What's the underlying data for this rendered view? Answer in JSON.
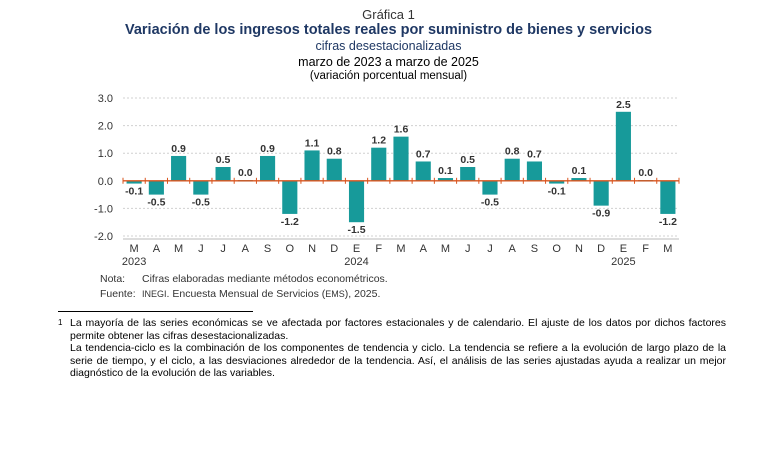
{
  "header": {
    "figure_label": "Gráfica 1",
    "title": "Variación de los ingresos totales reales por suministro de bienes y servicios",
    "subtitle": "cifras desestacionalizadas",
    "period": "marzo de 2023 a marzo de 2025",
    "units": "(variación porcentual mensual)"
  },
  "chart_data": {
    "type": "bar",
    "title": "Variación de los ingresos totales reales por suministro de bienes y servicios",
    "categories": [
      "M",
      "A",
      "M",
      "J",
      "J",
      "A",
      "S",
      "O",
      "N",
      "D",
      "E",
      "F",
      "M",
      "A",
      "M",
      "J",
      "J",
      "A",
      "S",
      "O",
      "N",
      "D",
      "E",
      "F",
      "M"
    ],
    "years": [
      {
        "label": "2023",
        "category_index": 0
      },
      {
        "label": "2024",
        "category_index": 10
      },
      {
        "label": "2025",
        "category_index": 22
      }
    ],
    "values": [
      -0.1,
      -0.5,
      0.9,
      -0.5,
      0.5,
      0.0,
      0.9,
      -1.2,
      1.1,
      0.8,
      -1.5,
      1.2,
      1.6,
      0.7,
      0.1,
      0.5,
      -0.5,
      0.8,
      0.7,
      -0.1,
      0.1,
      -0.9,
      2.5,
      0.0,
      -1.2
    ],
    "value_labels": [
      "-0.1",
      "-0.5",
      "0.9",
      "-0.5",
      "0.5",
      "0.0",
      "0.9",
      "-1.2",
      "1.1",
      "0.8",
      "-1.5",
      "1.2",
      "1.6",
      "0.7",
      "0.1",
      "0.5",
      "-0.5",
      "0.8",
      "0.7",
      "-0.1",
      "0.1",
      "-0.9",
      "2.5",
      "0.0",
      "-1.2"
    ],
    "yticks": [
      "3.0",
      "2.0",
      "1.0",
      "0.0",
      "-1.0",
      "-2.0"
    ],
    "ylim": [
      -2,
      3
    ],
    "bar_color": "#179a9a",
    "zero_line_color": "#d9541e",
    "grid": true
  },
  "notes": {
    "note_label": "Nota:",
    "note_text": "Cifras elaboradas mediante métodos econométricos.",
    "source_label": "Fuente:",
    "source_org": "INEGI",
    "source_mid": ". Encuesta Mensual de Servicios (",
    "source_abbr": "EMS",
    "source_end": "), 2025."
  },
  "footnote": {
    "mark": "1",
    "para1": "La mayoría de las series económicas se ve afectada por factores estacionales y de calendario. El ajuste de los datos por dichos factores permite obtener las cifras desestacionalizadas.",
    "para2": "La tendencia-ciclo es la combinación de los componentes de tendencia y ciclo. La tendencia se refiere a la evolución de largo plazo de la serie de tiempo, y el ciclo, a las desviaciones alrededor de la tendencia. Así, el análisis de las series ajustadas ayuda a realizar un mejor diagnóstico de la evolución de las variables."
  }
}
